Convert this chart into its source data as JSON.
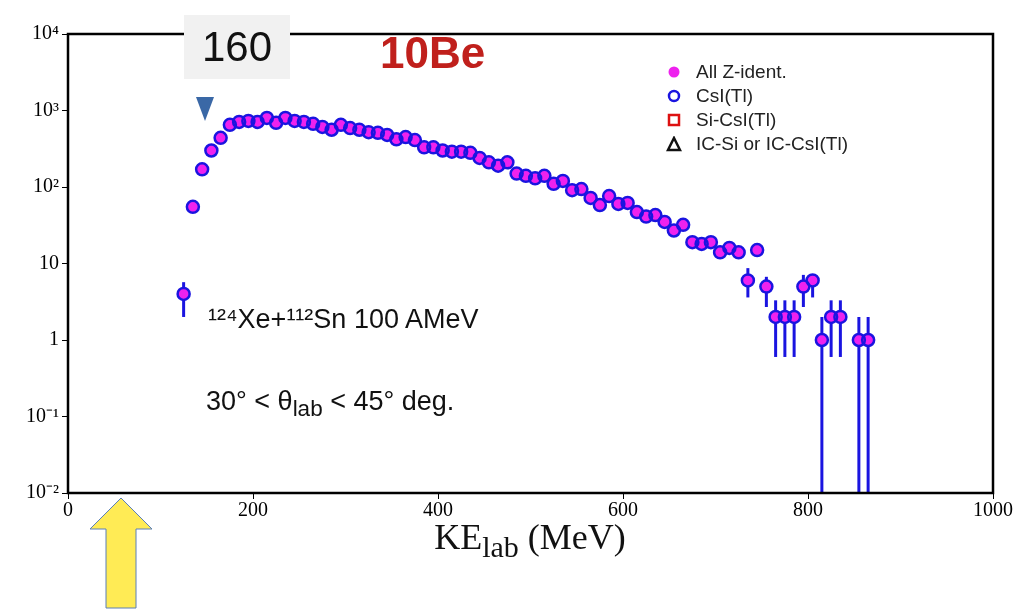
{
  "chart_data": {
    "type": "scatter",
    "title": "10Be",
    "xlabel": "KE$_{lab}$ (MeV)",
    "x": [
      125,
      135,
      145,
      155,
      165,
      175,
      185,
      195,
      205,
      215,
      225,
      235,
      245,
      255,
      265,
      275,
      285,
      295,
      305,
      315,
      325,
      335,
      345,
      355,
      365,
      375,
      385,
      395,
      405,
      415,
      425,
      435,
      445,
      455,
      465,
      475,
      485,
      495,
      505,
      515,
      525,
      535,
      545,
      555,
      565,
      575,
      585,
      595,
      605,
      615,
      625,
      635,
      645,
      655,
      665,
      675,
      685,
      695,
      705,
      715,
      725,
      735,
      745,
      755,
      765,
      775,
      785,
      795,
      805,
      815,
      825,
      835,
      855,
      865
    ],
    "series": [
      {
        "name": "All Z-ident.",
        "color": "#ee22ee",
        "marker": "circle",
        "values": [
          4,
          55,
          170,
          300,
          440,
          650,
          710,
          730,
          710,
          800,
          690,
          800,
          730,
          710,
          670,
          610,
          560,
          650,
          590,
          560,
          520,
          510,
          480,
          420,
          450,
          410,
          330,
          330,
          300,
          290,
          290,
          280,
          240,
          210,
          190,
          210,
          150,
          140,
          130,
          140,
          110,
          120,
          91,
          94,
          72,
          58,
          76,
          60,
          62,
          47,
          41,
          43,
          35,
          27,
          32,
          19,
          18,
          19,
          14,
          16,
          14,
          6,
          15,
          5,
          2,
          2,
          2,
          5,
          6,
          1,
          2,
          2,
          1,
          1
        ]
      },
      {
        "name": "CsI(Tl)",
        "color": "#1a14e0",
        "marker": "circle",
        "values": [
          4,
          55,
          170,
          300,
          440,
          650,
          710,
          730,
          710,
          800,
          690,
          800,
          730,
          710,
          670,
          610,
          560,
          650,
          590,
          560,
          520,
          510,
          480,
          420,
          450,
          410,
          330,
          330,
          300,
          290,
          290,
          280,
          240,
          210,
          190,
          210,
          150,
          140,
          130,
          140,
          110,
          120,
          91,
          94,
          72,
          58,
          76,
          60,
          62,
          47,
          41,
          43,
          35,
          27,
          32,
          19,
          18,
          19,
          14,
          16,
          14,
          6,
          15,
          5,
          2,
          2,
          2,
          5,
          6,
          1,
          2,
          2,
          1,
          1
        ],
        "errors": [
          [
            2,
            5.7
          ],
          null,
          null,
          null,
          null,
          null,
          null,
          null,
          null,
          null,
          null,
          null,
          null,
          null,
          null,
          null,
          null,
          null,
          null,
          null,
          null,
          null,
          null,
          null,
          null,
          null,
          null,
          null,
          null,
          null,
          null,
          null,
          null,
          null,
          null,
          null,
          null,
          null,
          null,
          null,
          null,
          null,
          null,
          null,
          null,
          null,
          null,
          null,
          null,
          null,
          null,
          null,
          null,
          null,
          null,
          null,
          null,
          null,
          null,
          null,
          null,
          [
            3.6,
            8.7
          ],
          null,
          [
            2.7,
            6.7
          ],
          [
            0.6,
            3.3
          ],
          [
            0.6,
            3.3
          ],
          [
            0.6,
            3.3
          ],
          [
            2.7,
            7.1
          ],
          [
            3.6,
            7.1
          ],
          [
            0.01,
            2
          ],
          [
            0.6,
            3.3
          ],
          [
            0.6,
            3.3
          ],
          [
            0.01,
            2
          ],
          [
            0.01,
            2
          ]
        ]
      },
      {
        "name": "Si-CsI(Tl)",
        "color": "#dd1111",
        "marker": "square",
        "values": [
          null,
          null,
          null,
          null,
          null,
          null,
          null,
          null,
          null,
          null,
          null,
          null,
          null,
          null,
          null,
          null,
          null,
          null,
          null,
          null,
          null,
          null,
          null,
          null,
          null,
          null,
          null,
          null,
          null,
          null,
          null,
          null,
          null,
          null,
          null,
          null,
          null,
          null,
          null,
          null,
          null,
          null,
          null,
          null,
          null,
          null,
          null,
          null,
          null,
          null,
          null,
          null,
          null,
          null,
          null,
          null,
          null,
          null,
          null,
          null,
          null,
          null,
          null,
          null,
          null,
          null,
          null,
          null,
          null,
          null,
          null,
          null,
          null,
          null
        ]
      },
      {
        "name": "IC-Si or IC-CsI(Tl)",
        "color": "#111111",
        "marker": "triangle",
        "values": [
          null,
          null,
          null,
          null,
          null,
          null,
          null,
          null,
          null,
          null,
          null,
          null,
          null,
          null,
          null,
          null,
          null,
          null,
          null,
          null,
          null,
          null,
          null,
          null,
          null,
          null,
          null,
          null,
          null,
          null,
          null,
          null,
          null,
          null,
          null,
          null,
          null,
          null,
          null,
          null,
          null,
          null,
          null,
          null,
          null,
          null,
          null,
          null,
          null,
          null,
          null,
          null,
          null,
          null,
          null,
          null,
          null,
          null,
          null,
          null,
          null,
          null,
          null,
          null,
          null,
          null,
          null,
          null,
          null,
          null,
          null,
          null,
          null,
          null
        ]
      }
    ],
    "xlim": [
      0,
      1000
    ],
    "xticks": [
      0,
      200,
      400,
      600,
      800,
      1000
    ],
    "ylim": [
      0.01,
      10000
    ],
    "yticks": [
      {
        "value": 0.01,
        "label": "10⁻²"
      },
      {
        "value": 0.1,
        "label": "10⁻¹"
      },
      1,
      10,
      {
        "value": 100,
        "label": "10²"
      },
      {
        "value": 1000,
        "label": "10³"
      },
      {
        "value": 10000,
        "label": "10⁴"
      }
    ],
    "log": true,
    "legend": "top right",
    "annotations": [
      "160",
      "¹²⁴Xe+¹¹²Sn 100 AMeV",
      "30° < θ$_{lab}$ < 45° deg."
    ]
  }
}
